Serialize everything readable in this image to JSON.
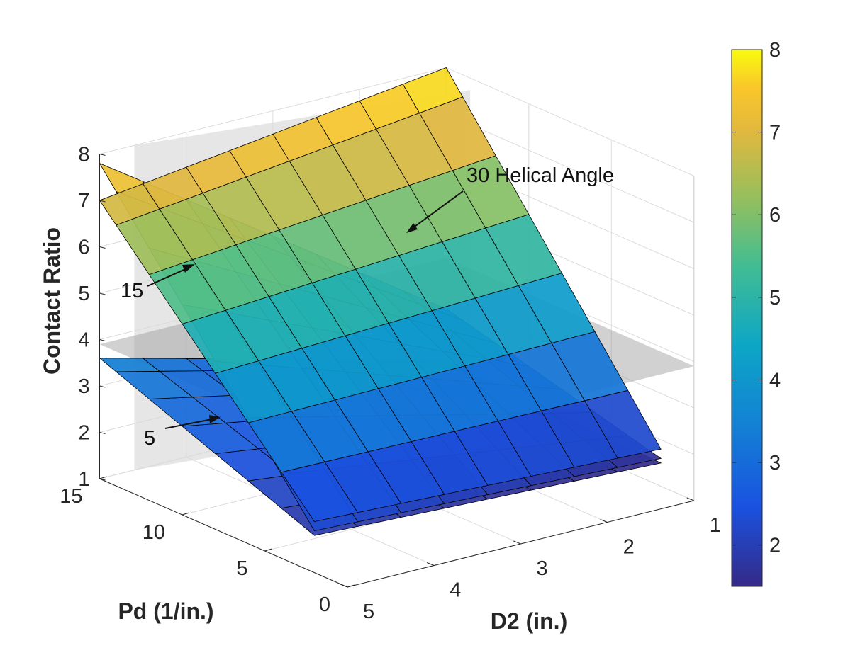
{
  "chart_data": {
    "type": "surface",
    "title": "",
    "xlabel": "D2 (in.)",
    "ylabel": "Pd (1/in.)",
    "zlabel": "Contact Ratio",
    "x_ticks": [
      "1",
      "2",
      "3",
      "4",
      "5"
    ],
    "y_ticks": [
      "0",
      "5",
      "10",
      "15"
    ],
    "z_ticks": [
      "1",
      "2",
      "3",
      "4",
      "5",
      "6",
      "7",
      "8"
    ],
    "xlim": [
      1,
      5
    ],
    "ylim": [
      0,
      15
    ],
    "zlim": [
      1,
      8
    ],
    "grid": true,
    "colormap": "parula",
    "colorbar": {
      "ticks": [
        "2",
        "3",
        "4",
        "5",
        "6",
        "7",
        "8"
      ],
      "range": [
        1.5,
        8
      ]
    },
    "reference_planes": [
      {
        "type": "horizontal",
        "z": 3.9,
        "color": "#9a9a9a"
      },
      {
        "type": "vertical",
        "color": "#d9d9d9"
      }
    ],
    "series": [
      {
        "name": "5",
        "helix_angle_deg": 5,
        "d2": [
          1,
          1.5,
          2,
          2.5,
          3,
          3.5,
          4,
          4.5,
          5
        ],
        "pd": [
          2,
          4,
          6,
          8,
          10,
          12,
          14,
          15
        ],
        "z_corners": {
          "d2_1_pd_2": 1.5,
          "d2_1_pd_15": 1.7,
          "d2_5_pd_2": 1.8,
          "d2_5_pd_15": 3.6
        }
      },
      {
        "name": "15",
        "helix_angle_deg": 15,
        "d2": [
          1,
          1.5,
          2,
          2.5,
          3,
          3.5,
          4,
          4.5,
          5
        ],
        "pd": [
          2,
          4,
          6,
          8,
          10,
          12,
          14,
          15
        ],
        "z_corners": {
          "d2_1_pd_2": 1.6,
          "d2_1_pd_15": 2.8,
          "d2_5_pd_2": 1.9,
          "d2_5_pd_15": 7.8
        }
      },
      {
        "name": "30 Helical Angle",
        "helix_angle_deg": 30,
        "d2": [
          1,
          1.5,
          2,
          2.5,
          3,
          3.5,
          4,
          4.5,
          5
        ],
        "pd": [
          2,
          4,
          6,
          8,
          10,
          12,
          14,
          15
        ],
        "z_corners": {
          "d2_1_pd_2": 1.8,
          "d2_1_pd_15": 8.0,
          "d2_5_pd_2": 2.1,
          "d2_5_pd_15": 7.0
        }
      }
    ],
    "annotations": [
      {
        "text": "30 Helical Angle"
      },
      {
        "text": "15"
      },
      {
        "text": "5"
      }
    ]
  }
}
